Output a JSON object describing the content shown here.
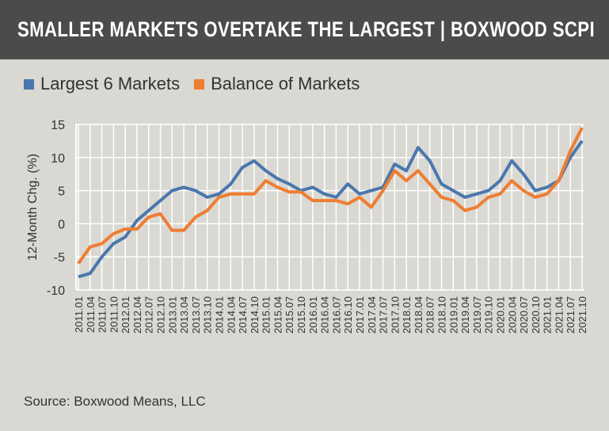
{
  "header": {
    "title": "SMALLER MARKETS OVERTAKE THE LARGEST | BOXWOOD SCPI"
  },
  "source": "Source: Boxwood Means, LLC",
  "colors": {
    "header": "#4b4b49",
    "background": "#d9d8d2",
    "grid": "#ffffff"
  },
  "chart_data": {
    "type": "line",
    "title": "",
    "xlabel": "",
    "ylabel": "12-Month Chg. (%)",
    "ylim": [
      -10,
      15
    ],
    "yticks": [
      -10,
      -5,
      0,
      5,
      10,
      15
    ],
    "grid": true,
    "legend": "top-left",
    "categories": [
      "2011.01",
      "2011.04",
      "2011.07",
      "2011.10",
      "2012.01",
      "2012.04",
      "2012.07",
      "2012.10",
      "2013.01",
      "2013.04",
      "2013.07",
      "2013.10",
      "2014.01",
      "2014.04",
      "2014.07",
      "2014.10",
      "2015.01",
      "2015.04",
      "2015.07",
      "2015.10",
      "2016.01",
      "2016.04",
      "2016.07",
      "2016.10",
      "2017.01",
      "2017.04",
      "2017.07",
      "2017.10",
      "2018.01",
      "2018.04",
      "2018.07",
      "2018.10",
      "2019.01",
      "2019.04",
      "2019.07",
      "2019.10",
      "2020.01",
      "2020.04",
      "2020.07",
      "2020.10",
      "2021.01",
      "2021.04",
      "2021.07",
      "2021.10"
    ],
    "series": [
      {
        "name": "Largest 6 Markets",
        "color": "#4a77ad",
        "values": [
          -8,
          -7.5,
          -5,
          -3,
          -2,
          0.5,
          2,
          3.5,
          5,
          5.5,
          5,
          4,
          4.5,
          6,
          8.5,
          9.5,
          8,
          6.8,
          6,
          5,
          5.5,
          4.5,
          4,
          6,
          4.5,
          5,
          5.5,
          9,
          8,
          11.5,
          9.5,
          6,
          5,
          4,
          4.5,
          5,
          6.5,
          9.5,
          7.5,
          5,
          5.5,
          6.5,
          10,
          12.5
        ]
      },
      {
        "name": "Balance of Markets",
        "color": "#ef7d32",
        "values": [
          -6,
          -3.5,
          -3,
          -1.5,
          -0.8,
          -0.8,
          1,
          1.5,
          -1,
          -1,
          1,
          2,
          4,
          4.5,
          4.5,
          4.5,
          6.5,
          5.5,
          4.8,
          4.8,
          3.5,
          3.5,
          3.5,
          3,
          4,
          2.5,
          5,
          8,
          6.5,
          8,
          6,
          4,
          3.5,
          2,
          2.5,
          4,
          4.5,
          6.5,
          5,
          4,
          4.5,
          6.5,
          11,
          14.5
        ]
      }
    ]
  }
}
